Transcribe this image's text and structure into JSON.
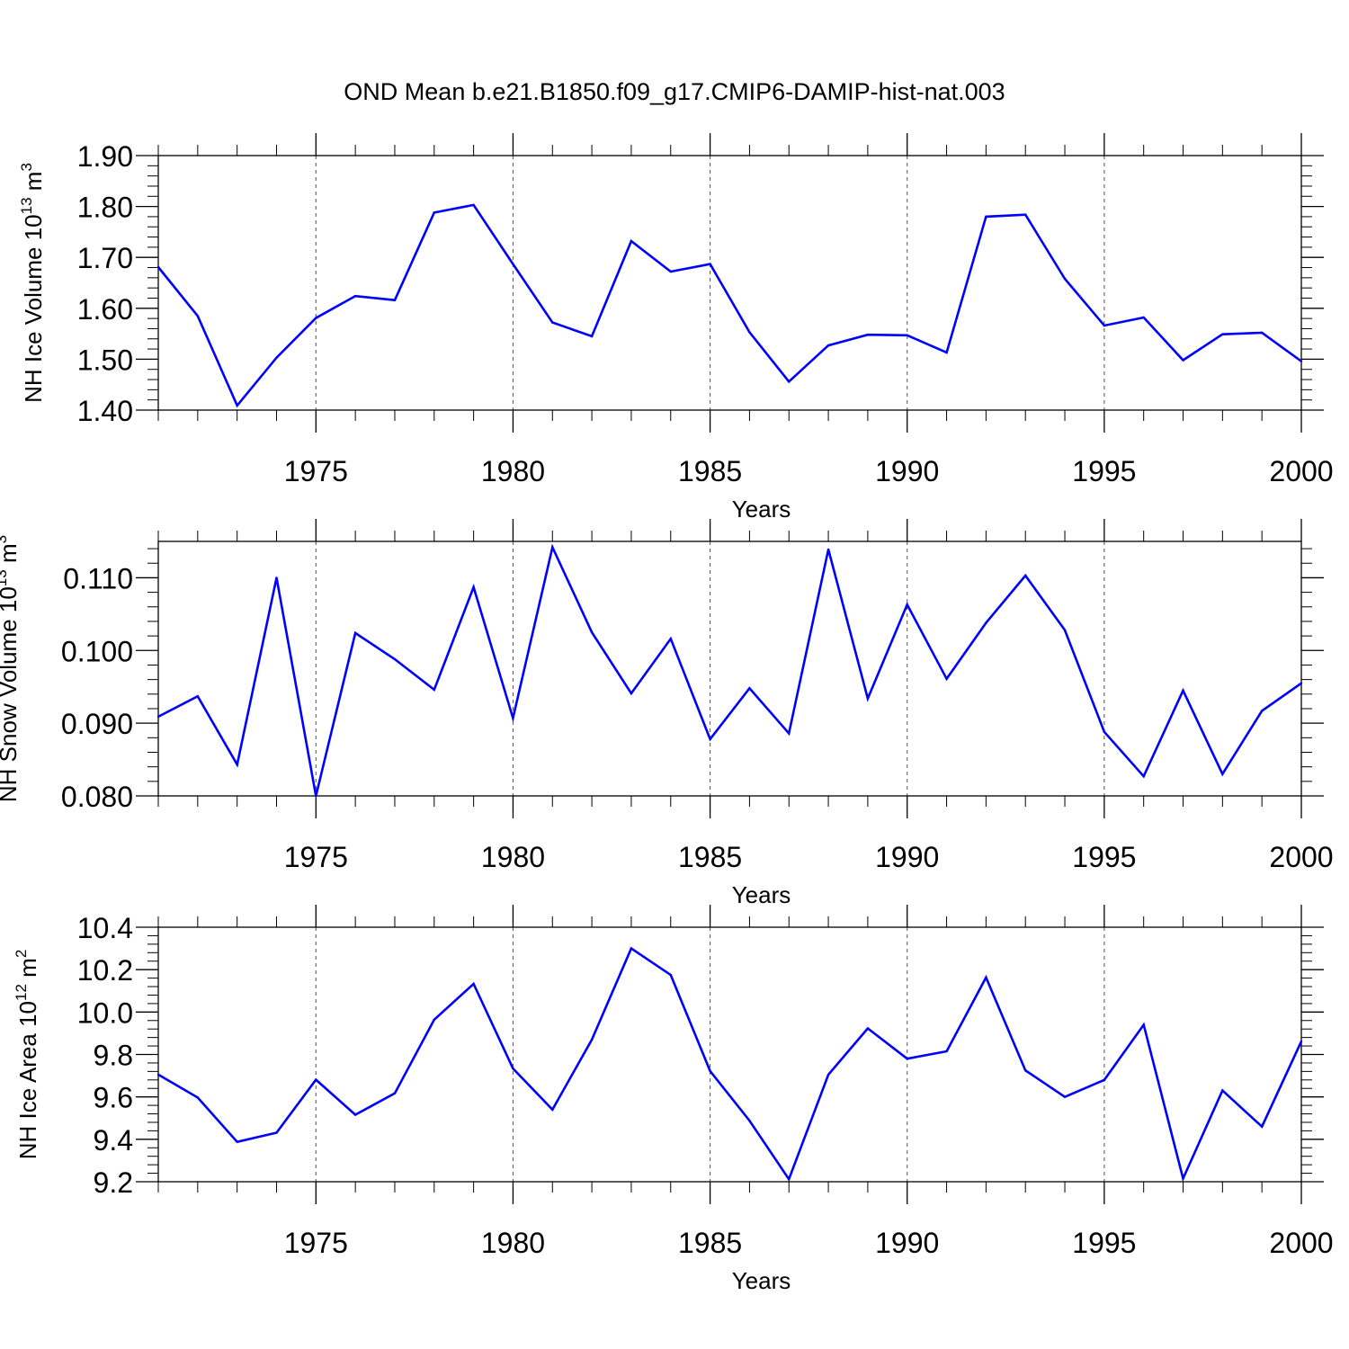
{
  "title": "OND Mean b.e21.B1850.f09_g17.CMIP6-DAMIP-hist-nat.003",
  "chart_data": [
    {
      "type": "line",
      "xlabel": "Years",
      "ylabel": "NH Ice Volume 10",
      "ylabel_exp": "13",
      "ylabel_unit": " m",
      "ylabel_unit_exp": "3",
      "xlim": [
        1971,
        2000
      ],
      "ylim": [
        1.4,
        1.9
      ],
      "yticks": [
        1.4,
        1.5,
        1.6,
        1.7,
        1.8,
        1.9
      ],
      "yticklabels": [
        "1.40",
        "1.50",
        "1.60",
        "1.70",
        "1.80",
        "1.90"
      ],
      "xticks": [
        1975,
        1980,
        1985,
        1990,
        1995,
        2000
      ],
      "xticklabels": [
        "1975",
        "1980",
        "1985",
        "1990",
        "1995",
        "2000"
      ],
      "grid": "vertical dashed at major x ticks",
      "color": "#0000ff",
      "x": [
        1971,
        1972,
        1973,
        1974,
        1975,
        1976,
        1977,
        1978,
        1979,
        1980,
        1981,
        1982,
        1983,
        1984,
        1985,
        1986,
        1987,
        1988,
        1989,
        1990,
        1991,
        1992,
        1993,
        1994,
        1995,
        1996,
        1997,
        1998,
        1999,
        2000
      ],
      "values": [
        1.681,
        1.585,
        1.409,
        1.503,
        1.581,
        1.624,
        1.616,
        1.788,
        1.803,
        1.687,
        1.572,
        1.545,
        1.732,
        1.672,
        1.687,
        1.553,
        1.456,
        1.527,
        1.548,
        1.547,
        1.513,
        1.78,
        1.784,
        1.658,
        1.566,
        1.582,
        1.498,
        1.549,
        1.552,
        1.496
      ]
    },
    {
      "type": "line",
      "xlabel": "Years",
      "ylabel": "NH Snow Volume 10",
      "ylabel_exp": "13",
      "ylabel_unit": " m",
      "ylabel_unit_exp": "3",
      "xlim": [
        1971,
        2000
      ],
      "ylim": [
        0.08,
        0.115
      ],
      "yticks": [
        0.08,
        0.09,
        0.1,
        0.11
      ],
      "yticklabels": [
        "0.080",
        "0.090",
        "0.100",
        "0.110"
      ],
      "xticks": [
        1975,
        1980,
        1985,
        1990,
        1995,
        2000
      ],
      "xticklabels": [
        "1975",
        "1980",
        "1985",
        "1990",
        "1995",
        "2000"
      ],
      "grid": "vertical dashed at major x ticks",
      "color": "#0000ff",
      "x": [
        1971,
        1972,
        1973,
        1974,
        1975,
        1976,
        1977,
        1978,
        1979,
        1980,
        1981,
        1982,
        1983,
        1984,
        1985,
        1986,
        1987,
        1988,
        1989,
        1990,
        1991,
        1992,
        1993,
        1994,
        1995,
        1996,
        1997,
        1998,
        1999,
        2000
      ],
      "values": [
        0.0909,
        0.0937,
        0.0843,
        0.11,
        0.08,
        0.1024,
        0.0988,
        0.0946,
        0.1087,
        0.0907,
        0.1142,
        0.1025,
        0.0941,
        0.1016,
        0.0878,
        0.0948,
        0.0886,
        0.1139,
        0.0934,
        0.1063,
        0.0961,
        0.1038,
        0.1103,
        0.1028,
        0.0888,
        0.0827,
        0.0945,
        0.083,
        0.0917,
        0.0955
      ]
    },
    {
      "type": "line",
      "xlabel": "Years",
      "ylabel": "NH Ice Area 10",
      "ylabel_exp": "12",
      "ylabel_unit": " m",
      "ylabel_unit_exp": "2",
      "xlim": [
        1971,
        2000
      ],
      "ylim": [
        9.2,
        10.4
      ],
      "yticks": [
        9.2,
        9.4,
        9.6,
        9.8,
        10.0,
        10.2,
        10.4
      ],
      "yticklabels": [
        "9.2",
        "9.4",
        "9.6",
        "9.8",
        "10.0",
        "10.2",
        "10.4"
      ],
      "xticks": [
        1975,
        1980,
        1985,
        1990,
        1995,
        2000
      ],
      "xticklabels": [
        "1975",
        "1980",
        "1985",
        "1990",
        "1995",
        "2000"
      ],
      "grid": "vertical dashed at major x ticks",
      "color": "#0000ff",
      "x": [
        1971,
        1972,
        1973,
        1974,
        1975,
        1976,
        1977,
        1978,
        1979,
        1980,
        1981,
        1982,
        1983,
        1984,
        1985,
        1986,
        1987,
        1988,
        1989,
        1990,
        1991,
        1992,
        1993,
        1994,
        1995,
        1996,
        1997,
        1998,
        1999,
        2000
      ],
      "values": [
        9.705,
        9.597,
        9.388,
        9.431,
        9.681,
        9.516,
        9.617,
        9.964,
        10.133,
        9.734,
        9.54,
        9.87,
        10.3,
        10.175,
        9.722,
        9.488,
        9.212,
        9.705,
        9.923,
        9.78,
        9.815,
        10.163,
        9.725,
        9.6,
        9.68,
        9.94,
        9.215,
        9.63,
        9.46,
        9.862
      ]
    }
  ]
}
